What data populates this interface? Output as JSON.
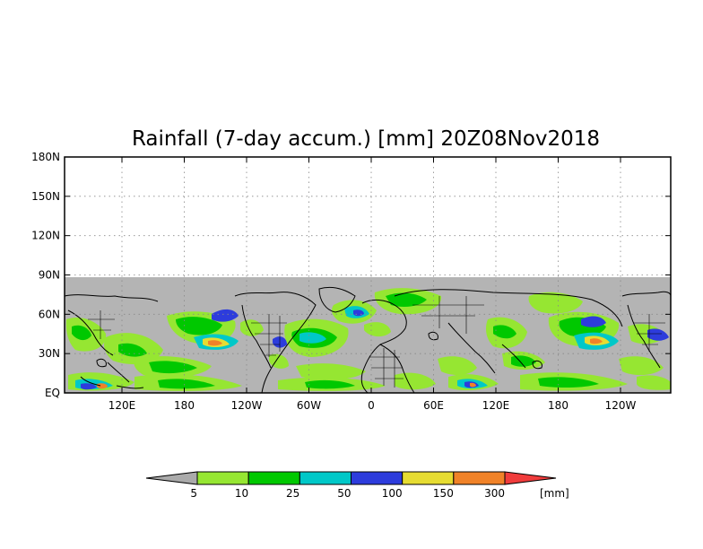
{
  "title": "Rainfall (7-day accum.) [mm] 20Z08Nov2018",
  "map": {
    "y_ticks": [
      "180N",
      "150N",
      "120N",
      "90N",
      "60N",
      "30N",
      "EQ"
    ],
    "x_ticks": [
      "120E",
      "180",
      "120W",
      "60W",
      "0",
      "60E",
      "120E",
      "180",
      "120W"
    ],
    "no_data_color": "#b4b4b4"
  },
  "colorbar": {
    "labels": [
      "5",
      "10",
      "25",
      "50",
      "100",
      "150",
      "300"
    ],
    "unit": "[mm]",
    "colors": [
      "#aaaaaa",
      "#96e632",
      "#00c800",
      "#00c8c8",
      "#2d3cdc",
      "#e6dc32",
      "#f08228",
      "#f03c3c"
    ]
  }
}
